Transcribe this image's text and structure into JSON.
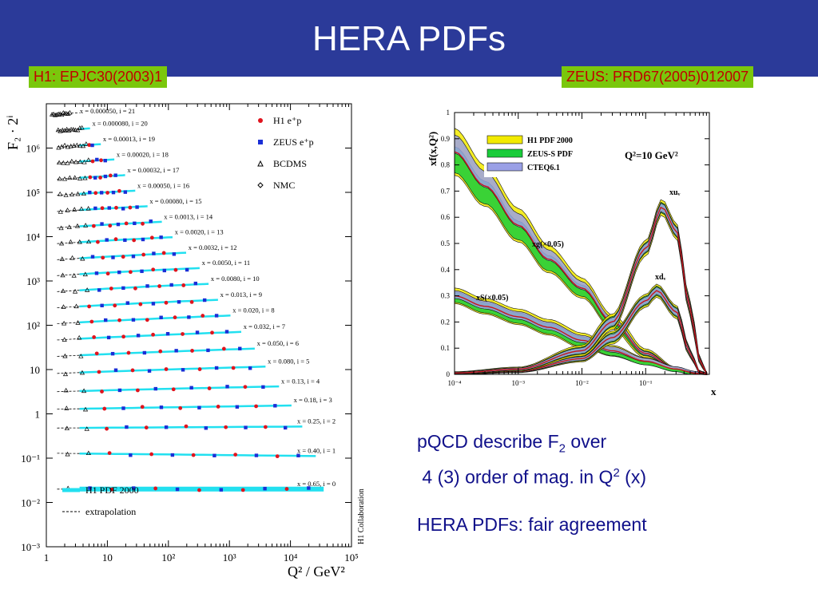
{
  "slide": {
    "title": "HERA PDFs",
    "ref_h1": "H1: EPJC30(2003)1",
    "ref_zeus": "ZEUS: PRD67(2005)012007",
    "note1_pre": "pQCD describe F",
    "note1_sub": "2",
    "note1_post": " over",
    "note2_pre": " 4 (3) order of mag. in Q",
    "note2_sup": "2",
    "note2_post": " (x)",
    "note3": "HERA PDFs: fair agreement",
    "colors": {
      "header_bg": "#2b3a99",
      "ref_bg": "#7ac70c",
      "ref_text": "#c00000",
      "note_text": "#10108a"
    }
  },
  "chart_data": [
    {
      "type": "scatter",
      "title": "",
      "xlabel": "Q² / GeV²",
      "ylabel": "F₂ · 2ⁱ",
      "xscale": "log",
      "yscale": "log",
      "xlim": [
        1,
        100000
      ],
      "ylim": [
        0.001,
        10000000
      ],
      "x_ticks": [
        "1",
        "10",
        "10²",
        "10³",
        "10⁴",
        "10⁵"
      ],
      "y_ticks": [
        "10⁶",
        "10⁵",
        "10⁴",
        "10³",
        "10²",
        "10",
        "1",
        "10⁻¹",
        "10⁻²",
        "10⁻³"
      ],
      "legend": [
        {
          "label": "H1 e⁺p",
          "marker": "circle",
          "color": "#e0141e"
        },
        {
          "label": "ZEUS e⁺p",
          "marker": "square",
          "color": "#1a2ed6"
        },
        {
          "label": "BCDMS",
          "marker": "triangle",
          "color": "#000000"
        },
        {
          "label": "NMC",
          "marker": "diamond",
          "color": "#000000"
        }
      ],
      "line_legend": [
        {
          "label": "H1 PDF 2000",
          "color": "#22e0f0"
        },
        {
          "label": "extrapolation",
          "color": "#000000",
          "dash": true
        }
      ],
      "side_label": "H1 Collaboration",
      "bins": [
        {
          "label": "x = 0.000050, i = 21",
          "x": 5e-05,
          "i": 21,
          "qmin": 1.2,
          "qmax": 2.5
        },
        {
          "label": "x = 0.000080, i = 20",
          "x": 8e-05,
          "i": 20,
          "qmin": 1.5,
          "qmax": 4
        },
        {
          "label": "x = 0.00013, i = 19",
          "x": 0.00013,
          "i": 19,
          "qmin": 1.5,
          "qmax": 6
        },
        {
          "label": "x = 0.00020, i = 18",
          "x": 0.0002,
          "i": 18,
          "qmin": 1.5,
          "qmax": 10
        },
        {
          "label": "x = 0.00032, i = 17",
          "x": 0.00032,
          "i": 17,
          "qmin": 1.5,
          "qmax": 15
        },
        {
          "label": "x = 0.00050, i = 16",
          "x": 0.0005,
          "i": 16,
          "qmin": 1.5,
          "qmax": 22
        },
        {
          "label": "x = 0.00080, i = 15",
          "x": 0.0008,
          "i": 15,
          "qmin": 1.5,
          "qmax": 35
        },
        {
          "label": "x = 0.0013, i = 14",
          "x": 0.0013,
          "i": 14,
          "qmin": 1.5,
          "qmax": 60
        },
        {
          "label": "x = 0.0020, i = 13",
          "x": 0.002,
          "i": 13,
          "qmin": 1.5,
          "qmax": 90
        },
        {
          "label": "x = 0.0032, i = 12",
          "x": 0.0032,
          "i": 12,
          "qmin": 1.5,
          "qmax": 150
        },
        {
          "label": "x = 0.0050, i = 11",
          "x": 0.005,
          "i": 11,
          "qmin": 1.5,
          "qmax": 250
        },
        {
          "label": "x = 0.0080, i = 10",
          "x": 0.008,
          "i": 10,
          "qmin": 1.5,
          "qmax": 350
        },
        {
          "label": "x = 0.013, i = 9",
          "x": 0.013,
          "i": 9,
          "qmin": 1.5,
          "qmax": 500
        },
        {
          "label": "x = 0.020, i = 8",
          "x": 0.02,
          "i": 8,
          "qmin": 1.5,
          "qmax": 800
        },
        {
          "label": "x = 0.032, i = 7",
          "x": 0.032,
          "i": 7,
          "qmin": 1.5,
          "qmax": 1200
        },
        {
          "label": "x = 0.050, i = 6",
          "x": 0.05,
          "i": 6,
          "qmin": 1.5,
          "qmax": 2000
        },
        {
          "label": "x = 0.080, i = 5",
          "x": 0.08,
          "i": 5,
          "qmin": 1.5,
          "qmax": 3000
        },
        {
          "label": "x = 0.13, i = 4",
          "x": 0.13,
          "i": 4,
          "qmin": 1.5,
          "qmax": 5000
        },
        {
          "label": "x = 0.18, i = 3",
          "x": 0.18,
          "i": 3,
          "qmin": 1.5,
          "qmax": 8000
        },
        {
          "label": "x = 0.25, i = 2",
          "x": 0.25,
          "i": 2,
          "qmin": 1.5,
          "qmax": 12000
        },
        {
          "label": "x = 0.40, i = 1",
          "x": 0.4,
          "i": 1,
          "qmin": 1.5,
          "qmax": 20000
        },
        {
          "label": "x = 0.65, i = 0",
          "x": 0.65,
          "i": 0,
          "qmin": 1.5,
          "qmax": 30000
        }
      ]
    },
    {
      "type": "area",
      "title": "",
      "xlabel": "x",
      "ylabel": "xf(x,Q²)",
      "xscale": "log",
      "xlim": [
        0.0001,
        1
      ],
      "ylim": [
        0,
        1
      ],
      "x_ticks": [
        "10⁻⁴",
        "10⁻³",
        "10⁻²",
        "10⁻¹"
      ],
      "y_ticks": [
        "0",
        "0.1",
        "0.2",
        "0.3",
        "0.4",
        "0.5",
        "0.6",
        "0.7",
        "0.8",
        "0.9",
        "1"
      ],
      "annotation": "Q²=10 GeV²",
      "legend_placement": "top",
      "series": [
        {
          "name": "H1 PDF 2000",
          "color": "#f2ea00"
        },
        {
          "name": "ZEUS-S PDF",
          "color": "#19cc3a"
        },
        {
          "name": "CTEQ6.1",
          "color": "#9aa0e6"
        }
      ],
      "curve_labels": [
        "xuᵥ",
        "xdᵥ",
        "xg(×0.05)",
        "xS(×0.05)"
      ],
      "curves": {
        "xuv": {
          "x": [
            0.0001,
            0.001,
            0.01,
            0.03,
            0.1,
            0.18,
            0.3,
            0.5,
            0.7,
            0.9
          ],
          "y": [
            0.005,
            0.02,
            0.09,
            0.2,
            0.48,
            0.64,
            0.55,
            0.25,
            0.06,
            0.0
          ]
        },
        "xdv": {
          "x": [
            0.0001,
            0.001,
            0.01,
            0.03,
            0.1,
            0.15,
            0.3,
            0.5,
            0.7,
            0.9
          ],
          "y": [
            0.003,
            0.012,
            0.06,
            0.14,
            0.28,
            0.32,
            0.24,
            0.08,
            0.01,
            0.0
          ]
        },
        "xg": {
          "x": [
            0.0001,
            0.0003,
            0.001,
            0.003,
            0.01,
            0.03,
            0.1,
            0.3,
            0.6,
            0.9
          ],
          "y": [
            0.85,
            0.72,
            0.57,
            0.44,
            0.33,
            0.2,
            0.08,
            0.02,
            0.005,
            0.0
          ]
        },
        "xS": {
          "x": [
            0.0001,
            0.0003,
            0.001,
            0.003,
            0.01,
            0.03,
            0.1,
            0.3,
            0.6,
            0.9
          ],
          "y": [
            0.3,
            0.26,
            0.22,
            0.18,
            0.13,
            0.09,
            0.05,
            0.02,
            0.004,
            0.0
          ]
        }
      }
    }
  ]
}
